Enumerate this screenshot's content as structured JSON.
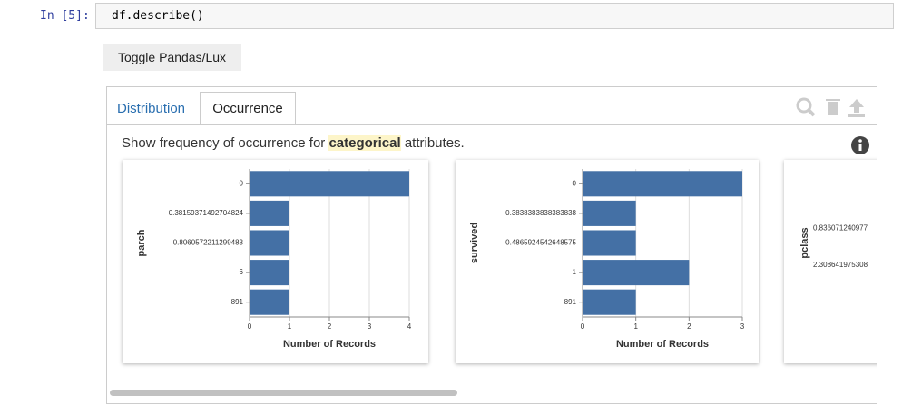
{
  "cell": {
    "prompt": "In [5]:",
    "code": "df.describe()"
  },
  "button": "Toggle Pandas/Lux",
  "tabs": [
    "Distribution",
    "Occurrence"
  ],
  "description": {
    "before": "Show frequency of occurrence for ",
    "highlight": "categorical",
    "after": " attributes."
  },
  "chart_data": [
    {
      "type": "bar",
      "orientation": "horizontal",
      "y_label": "parch",
      "x_label": "Number of Records",
      "categories": [
        "0",
        "0.38159371492704824",
        "0.8060572211299483",
        "6",
        "891"
      ],
      "values": [
        4,
        1,
        1,
        1,
        1
      ],
      "color": "#4470a5",
      "xlim": [
        0,
        4
      ],
      "xticks": [
        0,
        1,
        2,
        3,
        4
      ],
      "grid": true
    },
    {
      "type": "bar",
      "orientation": "horizontal",
      "y_label": "survived",
      "x_label": "Number of Records",
      "categories": [
        "0",
        "0.3838383838383838",
        "0.4865924542648575",
        "1",
        "891"
      ],
      "values": [
        3,
        1,
        1,
        2,
        1
      ],
      "color": "#4470a5",
      "xlim": [
        0,
        3
      ],
      "xticks": [
        0,
        1,
        2,
        3
      ],
      "grid": true
    },
    {
      "type": "bar",
      "orientation": "horizontal",
      "y_label": "pclass",
      "categories": [
        null,
        "0.836071240977",
        "2.308641975308"
      ],
      "color": "#4470a5"
    }
  ]
}
